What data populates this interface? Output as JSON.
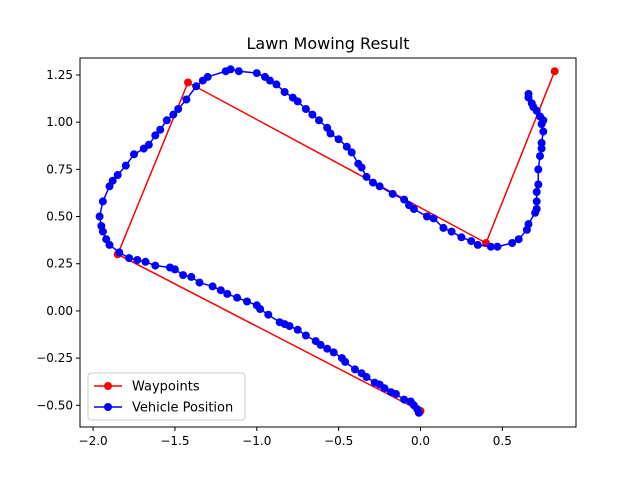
{
  "chart_data": {
    "type": "line",
    "title": "Lawn Mowing Result",
    "xlabel": "",
    "ylabel": "",
    "xlim": [
      -2.08,
      0.95
    ],
    "ylim": [
      -0.615,
      1.34
    ],
    "xticks": [
      -2.0,
      -1.5,
      -1.0,
      -0.5,
      0.0,
      0.5
    ],
    "xtick_labels": [
      "−2.0",
      "−1.5",
      "−1.0",
      "−0.5",
      "0.0",
      "0.5"
    ],
    "yticks": [
      -0.5,
      -0.25,
      0.0,
      0.25,
      0.5,
      0.75,
      1.0,
      1.25
    ],
    "ytick_labels": [
      "−0.50",
      "−0.25",
      "0.00",
      "0.25",
      "0.50",
      "0.75",
      "1.00",
      "1.25"
    ],
    "grid": false,
    "legend_position": "lower-left",
    "series": [
      {
        "name": "Waypoints",
        "color": "#ff0000",
        "marker": "circle",
        "points": [
          [
            0.0,
            -0.53
          ],
          [
            -1.85,
            0.3
          ],
          [
            -1.42,
            1.21
          ],
          [
            0.4,
            0.36
          ],
          [
            0.82,
            1.27
          ]
        ]
      },
      {
        "name": "Vehicle Position",
        "color": "#0000ff",
        "marker": "circle",
        "points": [
          [
            -0.01,
            -0.54
          ],
          [
            -0.02,
            -0.52
          ],
          [
            -0.04,
            -0.5
          ],
          [
            -0.06,
            -0.48
          ],
          [
            -0.1,
            -0.47
          ],
          [
            -0.15,
            -0.44
          ],
          [
            -0.18,
            -0.43
          ],
          [
            -0.22,
            -0.41
          ],
          [
            -0.25,
            -0.39
          ],
          [
            -0.28,
            -0.38
          ],
          [
            -0.33,
            -0.35
          ],
          [
            -0.36,
            -0.33
          ],
          [
            -0.4,
            -0.31
          ],
          [
            -0.46,
            -0.27
          ],
          [
            -0.48,
            -0.25
          ],
          [
            -0.53,
            -0.22
          ],
          [
            -0.57,
            -0.2
          ],
          [
            -0.61,
            -0.18
          ],
          [
            -0.64,
            -0.16
          ],
          [
            -0.7,
            -0.13
          ],
          [
            -0.75,
            -0.1
          ],
          [
            -0.8,
            -0.08
          ],
          [
            -0.83,
            -0.07
          ],
          [
            -0.86,
            -0.06
          ],
          [
            -0.93,
            -0.02
          ],
          [
            -0.98,
            0.01
          ],
          [
            -1.0,
            0.03
          ],
          [
            -1.06,
            0.05
          ],
          [
            -1.12,
            0.07
          ],
          [
            -1.18,
            0.09
          ],
          [
            -1.22,
            0.11
          ],
          [
            -1.27,
            0.13
          ],
          [
            -1.35,
            0.15
          ],
          [
            -1.4,
            0.18
          ],
          [
            -1.45,
            0.19
          ],
          [
            -1.5,
            0.22
          ],
          [
            -1.53,
            0.23
          ],
          [
            -1.62,
            0.24
          ],
          [
            -1.68,
            0.26
          ],
          [
            -1.73,
            0.27
          ],
          [
            -1.78,
            0.28
          ],
          [
            -1.84,
            0.31
          ],
          [
            -1.9,
            0.35
          ],
          [
            -1.92,
            0.38
          ],
          [
            -1.94,
            0.42
          ],
          [
            -1.95,
            0.45
          ],
          [
            -1.96,
            0.5
          ],
          [
            -1.94,
            0.58
          ],
          [
            -1.9,
            0.66
          ],
          [
            -1.88,
            0.69
          ],
          [
            -1.85,
            0.72
          ],
          [
            -1.8,
            0.77
          ],
          [
            -1.75,
            0.83
          ],
          [
            -1.69,
            0.86
          ],
          [
            -1.66,
            0.88
          ],
          [
            -1.62,
            0.93
          ],
          [
            -1.59,
            0.96
          ],
          [
            -1.55,
            1.01
          ],
          [
            -1.51,
            1.04
          ],
          [
            -1.48,
            1.07
          ],
          [
            -1.43,
            1.12
          ],
          [
            -1.37,
            1.19
          ],
          [
            -1.33,
            1.22
          ],
          [
            -1.3,
            1.24
          ],
          [
            -1.19,
            1.27
          ],
          [
            -1.16,
            1.28
          ],
          [
            -1.11,
            1.27
          ],
          [
            -1.0,
            1.26
          ],
          [
            -0.95,
            1.24
          ],
          [
            -0.92,
            1.22
          ],
          [
            -0.88,
            1.2
          ],
          [
            -0.83,
            1.16
          ],
          [
            -0.78,
            1.13
          ],
          [
            -0.75,
            1.11
          ],
          [
            -0.7,
            1.07
          ],
          [
            -0.66,
            1.04
          ],
          [
            -0.62,
            1.01
          ],
          [
            -0.57,
            0.97
          ],
          [
            -0.55,
            0.94
          ],
          [
            -0.5,
            0.91
          ],
          [
            -0.45,
            0.87
          ],
          [
            -0.42,
            0.84
          ],
          [
            -0.38,
            0.78
          ],
          [
            -0.36,
            0.76
          ],
          [
            -0.33,
            0.71
          ],
          [
            -0.29,
            0.68
          ],
          [
            -0.25,
            0.66
          ],
          [
            -0.17,
            0.62
          ],
          [
            -0.1,
            0.59
          ],
          [
            -0.07,
            0.56
          ],
          [
            -0.04,
            0.54
          ],
          [
            0.04,
            0.5
          ],
          [
            0.08,
            0.49
          ],
          [
            0.14,
            0.44
          ],
          [
            0.19,
            0.42
          ],
          [
            0.25,
            0.39
          ],
          [
            0.31,
            0.37
          ],
          [
            0.35,
            0.35
          ],
          [
            0.43,
            0.34
          ],
          [
            0.47,
            0.34
          ],
          [
            0.56,
            0.36
          ],
          [
            0.6,
            0.38
          ],
          [
            0.65,
            0.43
          ],
          [
            0.66,
            0.46
          ],
          [
            0.7,
            0.52
          ],
          [
            0.71,
            0.54
          ],
          [
            0.71,
            0.58
          ],
          [
            0.71,
            0.63
          ],
          [
            0.72,
            0.67
          ],
          [
            0.72,
            0.75
          ],
          [
            0.73,
            0.82
          ],
          [
            0.74,
            0.86
          ],
          [
            0.74,
            0.89
          ],
          [
            0.75,
            0.95
          ],
          [
            0.74,
            0.99
          ],
          [
            0.75,
            1.01
          ],
          [
            0.73,
            1.03
          ],
          [
            0.71,
            1.06
          ],
          [
            0.69,
            1.08
          ],
          [
            0.68,
            1.1
          ],
          [
            0.66,
            1.13
          ],
          [
            0.66,
            1.15
          ]
        ]
      }
    ]
  }
}
